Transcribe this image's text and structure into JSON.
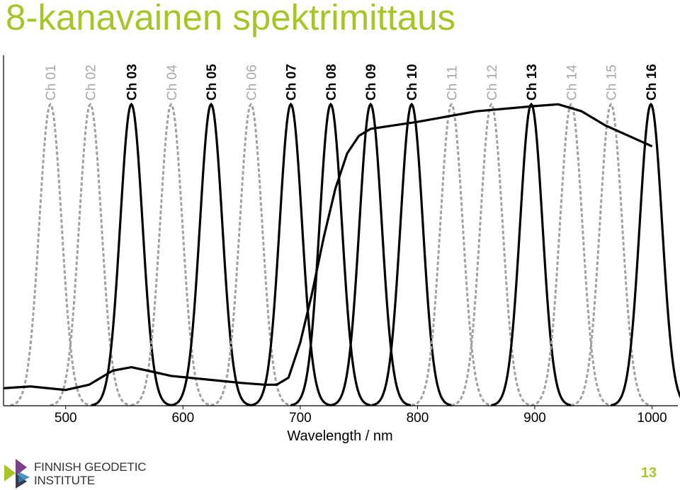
{
  "slide": {
    "title": "8-kanavainen spektrimittaus",
    "page_number": "13",
    "logo": {
      "line1": "FINNISH GEODETIC",
      "line2": "INSTITUTE",
      "icon": "finnish-geodetic-institute-logo-icon"
    }
  },
  "colors": {
    "title": "#a6c628",
    "page_number": "#a6c628",
    "active_channel": "#000000",
    "inactive_channel": "#a0a0a0",
    "inactive_label": "#a8a8a8",
    "spectrum": "#000000",
    "logo_accent": "#a6c628",
    "logo_dark": "#3a3a4a"
  },
  "chart_data": {
    "type": "line",
    "title": "",
    "xlabel": "Wavelength / nm",
    "ylabel": "",
    "xlim": [
      447,
      1022
    ],
    "ylim": [
      0,
      1
    ],
    "xticks": [
      500,
      600,
      700,
      800,
      900,
      1000
    ],
    "grid": false,
    "channel_half_width_nm": 9.5,
    "channels": [
      {
        "name": "Ch 01",
        "center": 487,
        "active": false
      },
      {
        "name": "Ch 02",
        "center": 521,
        "active": false
      },
      {
        "name": "Ch 03",
        "center": 556,
        "active": true
      },
      {
        "name": "Ch 04",
        "center": 590,
        "active": false
      },
      {
        "name": "Ch 05",
        "center": 624,
        "active": true
      },
      {
        "name": "Ch 06",
        "center": 658,
        "active": false
      },
      {
        "name": "Ch 07",
        "center": 692,
        "active": true
      },
      {
        "name": "Ch 08",
        "center": 726,
        "active": true
      },
      {
        "name": "Ch 09",
        "center": 760,
        "active": true
      },
      {
        "name": "Ch 10",
        "center": 795,
        "active": true
      },
      {
        "name": "Ch 11",
        "center": 829,
        "active": false
      },
      {
        "name": "Ch 12",
        "center": 863,
        "active": false
      },
      {
        "name": "Ch 13",
        "center": 897,
        "active": true
      },
      {
        "name": "Ch 14",
        "center": 931,
        "active": false
      },
      {
        "name": "Ch 15",
        "center": 965,
        "active": false
      },
      {
        "name": "Ch 16",
        "center": 999,
        "active": true
      }
    ],
    "spectrum": {
      "x": [
        447,
        470,
        500,
        520,
        540,
        556,
        570,
        590,
        620,
        650,
        670,
        680,
        690,
        700,
        710,
        720,
        730,
        740,
        750,
        760,
        800,
        850,
        900,
        920,
        940,
        960,
        980,
        1000
      ],
      "y": [
        0.05,
        0.055,
        0.045,
        0.06,
        0.1,
        0.11,
        0.1,
        0.085,
        0.075,
        0.065,
        0.06,
        0.06,
        0.08,
        0.18,
        0.32,
        0.48,
        0.62,
        0.72,
        0.77,
        0.79,
        0.81,
        0.84,
        0.855,
        0.86,
        0.84,
        0.8,
        0.77,
        0.74
      ]
    }
  }
}
